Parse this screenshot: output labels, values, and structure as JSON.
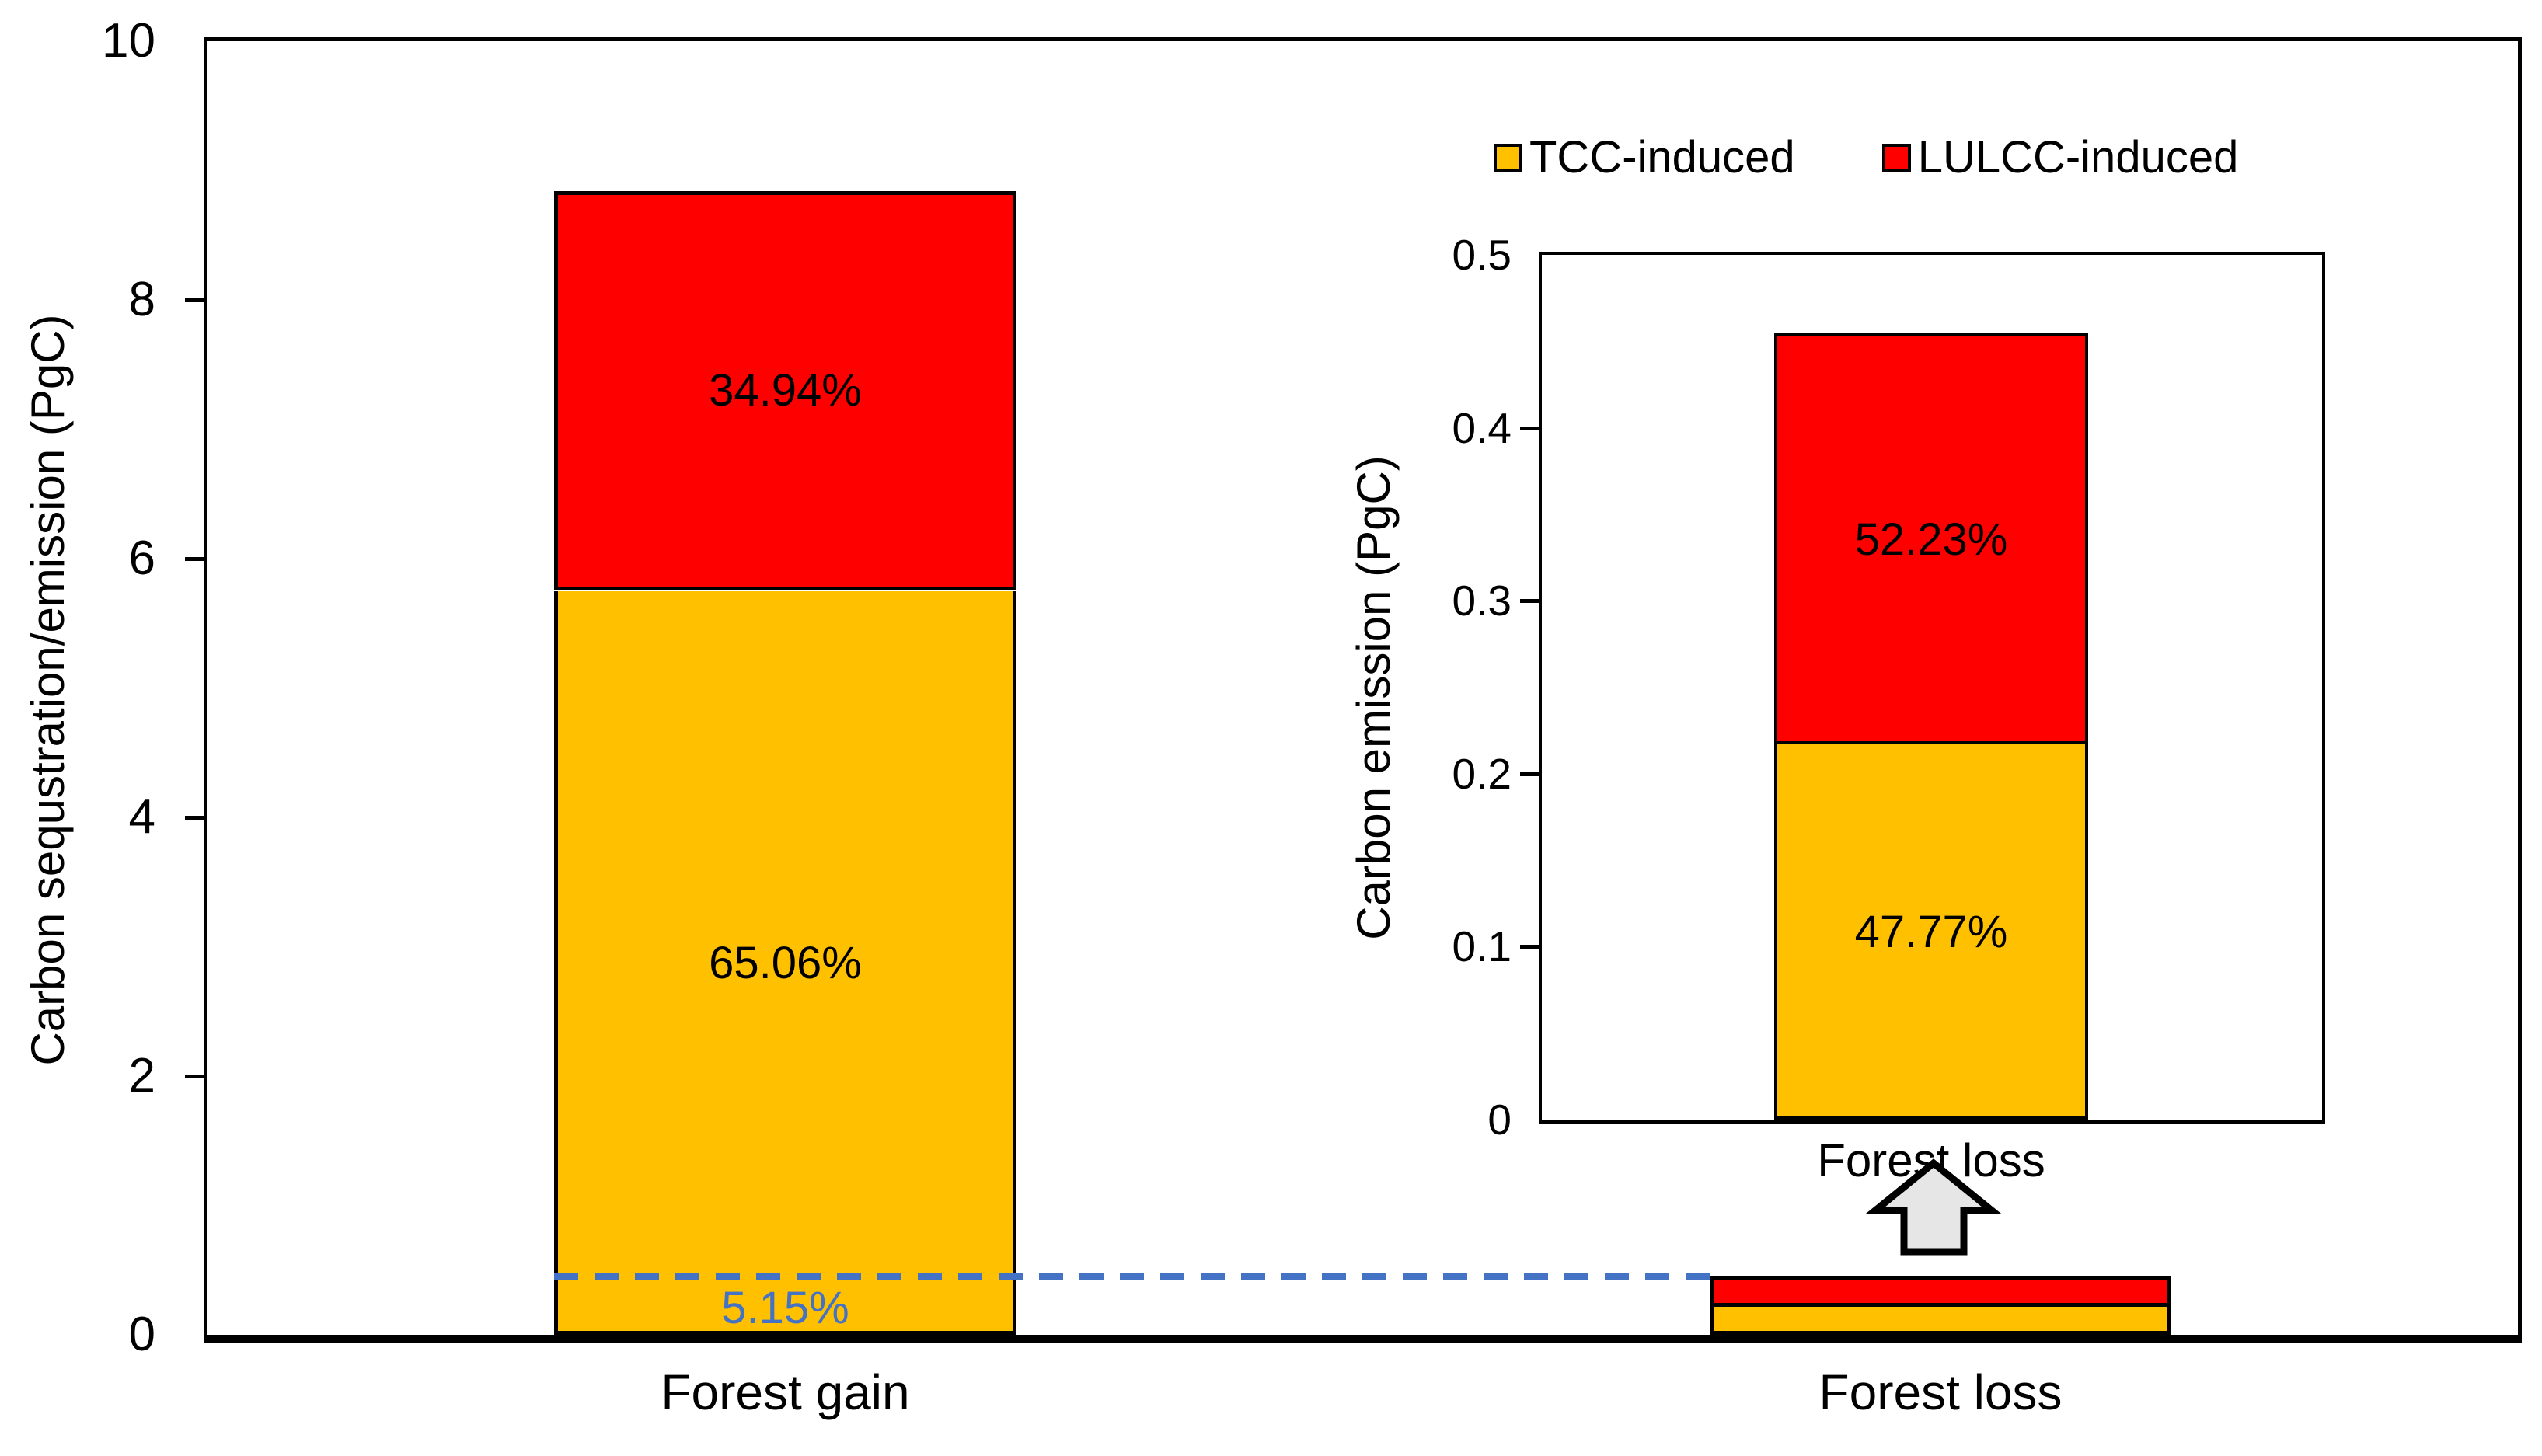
{
  "colors": {
    "tcc": "#FFC000",
    "lulcc": "#FF0000",
    "dashed_line": "#4472C4",
    "axis": "#000000",
    "background": "#FFFFFF",
    "arrow_fill": "#E7E6E6",
    "arrow_stroke": "#000000"
  },
  "chart_data": [
    {
      "id": "main",
      "type": "bar",
      "stacked": true,
      "categories": [
        "Forest gain",
        "Forest loss"
      ],
      "series": [
        {
          "name": "TCC-induced",
          "color": "#FFC000",
          "values": [
            5.75,
            0.217
          ],
          "segment_labels": [
            "65.06%",
            ""
          ]
        },
        {
          "name": "LULCC-induced",
          "color": "#FF0000",
          "values": [
            3.09,
            0.238
          ],
          "segment_labels": [
            "34.94%",
            ""
          ]
        }
      ],
      "ylabel": "Carbon sequstration/emission (PgC)",
      "ylim": [
        0,
        10
      ],
      "yticks": [
        "0",
        "2",
        "4",
        "6",
        "8",
        "10"
      ],
      "grid": false,
      "legend_position": "top-right",
      "annotation": {
        "type": "dashed-line",
        "value": 0.455,
        "label": "5.15%",
        "color": "#4472C4"
      }
    },
    {
      "id": "inset",
      "type": "bar",
      "stacked": true,
      "categories": [
        "Forest loss"
      ],
      "series": [
        {
          "name": "TCC-induced",
          "color": "#FFC000",
          "values": [
            0.217
          ],
          "segment_labels": [
            "47.77%"
          ]
        },
        {
          "name": "LULCC-induced",
          "color": "#FF0000",
          "values": [
            0.238
          ],
          "segment_labels": [
            "52.23%"
          ]
        }
      ],
      "ylabel": "Carbon emission (PgC)",
      "ylim": [
        0,
        0.5
      ],
      "yticks": [
        "0",
        "0.1",
        "0.2",
        "0.3",
        "0.4",
        "0.5"
      ],
      "grid": false
    }
  ],
  "icons": {
    "up_arrow": "up-arrow-icon"
  }
}
